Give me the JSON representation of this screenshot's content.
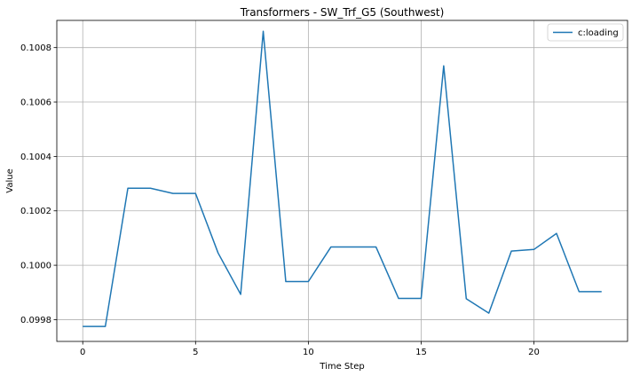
{
  "chart_data": {
    "type": "line",
    "title": "Transformers - SW_Trf_G5 (Southwest)",
    "xlabel": "Time Step",
    "ylabel": "Value",
    "xlim": [
      -1.15,
      24.15
    ],
    "ylim": [
      0.09972,
      0.1009
    ],
    "xticks": [
      0,
      5,
      10,
      15,
      20
    ],
    "xtick_labels": [
      "0",
      "5",
      "10",
      "15",
      "20"
    ],
    "yticks": [
      0.0998,
      0.1,
      0.1002,
      0.1004,
      0.1006,
      0.1008
    ],
    "ytick_labels": [
      "0.0998",
      "0.1000",
      "0.1002",
      "0.1004",
      "0.1006",
      "0.1008"
    ],
    "grid": true,
    "legend_position": "top-right",
    "series": [
      {
        "name": "c:loading",
        "color": "#1f77b4",
        "x": [
          0,
          1,
          2,
          3,
          4,
          5,
          6,
          7,
          8,
          9,
          10,
          11,
          12,
          13,
          14,
          15,
          16,
          17,
          18,
          19,
          20,
          21,
          22,
          23
        ],
        "values": [
          0.099775,
          0.099775,
          0.100283,
          0.100283,
          0.100264,
          0.100264,
          0.100045,
          0.099893,
          0.10086,
          0.09994,
          0.09994,
          0.100067,
          0.100067,
          0.100067,
          0.099878,
          0.099878,
          0.100733,
          0.099877,
          0.099824,
          0.100052,
          0.100058,
          0.100117,
          0.099903,
          0.099903
        ]
      }
    ]
  }
}
